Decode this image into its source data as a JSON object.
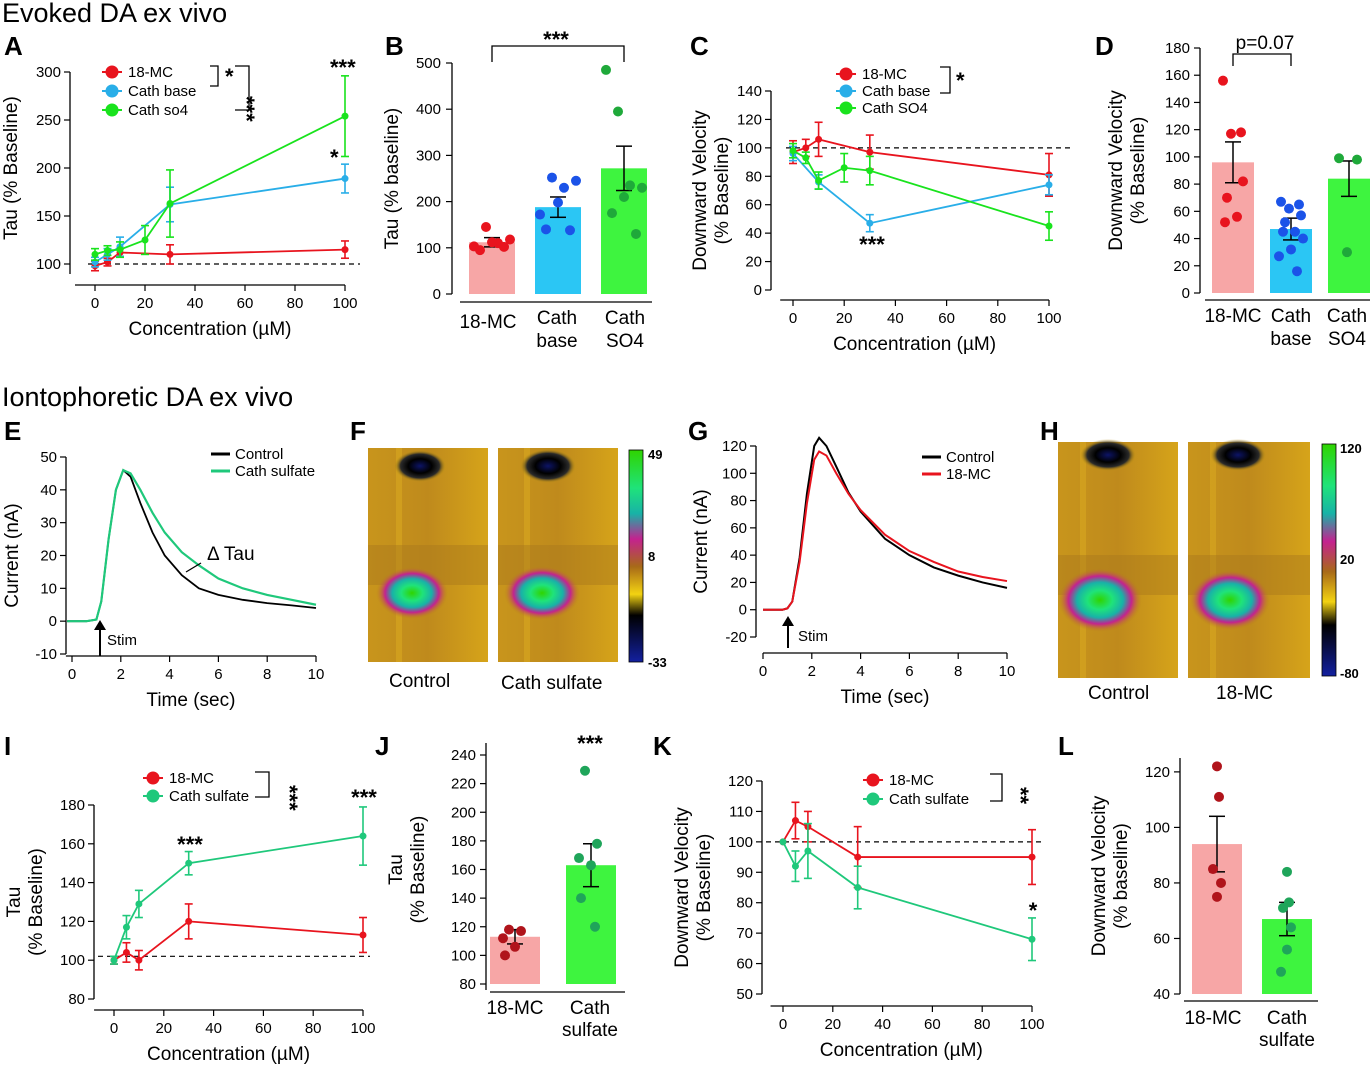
{
  "section_titles": {
    "top": "Evoked DA ex vivo",
    "bottom": "Iontophoretic DA ex vivo"
  },
  "colors": {
    "mc": "#e8141e",
    "base": "#29aee8",
    "so4": "#19e31d",
    "csulf": "#1fc87b",
    "mc_bar": "#f7a6a6",
    "base_bar": "#2bc6f4",
    "so4_bar": "#3ef43f",
    "mc_dot": "#e8141e",
    "base_dot": "#1b53e8",
    "so4_dot": "#1fa93a",
    "l_mc_dot": "#b0141b",
    "l_cs_dot": "#1fa55a",
    "black": "#000000"
  },
  "panels": {
    "A": {
      "letter": "A",
      "xlabel": "Concentration (µM)",
      "ylabel": "Tau (% Baseline)",
      "xticks": [
        "0",
        "20",
        "40",
        "60",
        "80",
        "100"
      ],
      "yticks": [
        "100",
        "150",
        "200",
        "250",
        "300"
      ],
      "legend": [
        "18-MC",
        "Cath base",
        "Cath so4"
      ],
      "stars": [
        "*",
        "***",
        "***",
        "*"
      ]
    },
    "B": {
      "letter": "B",
      "ylabel": "Tau (% baseline)",
      "yticks": [
        "0",
        "100",
        "200",
        "300",
        "400",
        "500"
      ],
      "categories": [
        "18-MC",
        "Cath base",
        "Cath SO4"
      ],
      "stars": [
        "***"
      ]
    },
    "C": {
      "letter": "C",
      "xlabel": "Concentration (µM)",
      "ylabel": "Downward Velocity",
      "ylabel2": "(% Baseline)",
      "xticks": [
        "0",
        "20",
        "40",
        "60",
        "80",
        "100"
      ],
      "yticks": [
        "0",
        "20",
        "40",
        "60",
        "80",
        "100",
        "120",
        "140"
      ],
      "legend": [
        "18-MC",
        "Cath base",
        "Cath SO4"
      ],
      "stars": [
        "*",
        "***"
      ]
    },
    "D": {
      "letter": "D",
      "ylabel": "Downward Velocity",
      "ylabel2": "(% Baseline)",
      "yticks": [
        "0",
        "20",
        "40",
        "60",
        "80",
        "100",
        "120",
        "140",
        "160",
        "180"
      ],
      "categories": [
        "18-MC",
        "Cath base",
        "Cath SO4"
      ],
      "pval": "p=0.07"
    },
    "E": {
      "letter": "E",
      "xlabel": "Time (sec)",
      "ylabel": "Current (nA)",
      "xticks": [
        "0",
        "2",
        "4",
        "6",
        "8",
        "10"
      ],
      "yticks": [
        "-10",
        "0",
        "10",
        "20",
        "30",
        "40",
        "50"
      ],
      "legend": [
        "Control",
        "Cath sulfate"
      ],
      "stim": "Stim",
      "delta": "Δ Tau"
    },
    "F": {
      "letter": "F",
      "labels": [
        "Control",
        "Cath sulfate"
      ],
      "cbar": [
        "49",
        "8",
        "-33"
      ]
    },
    "G": {
      "letter": "G",
      "xlabel": "Time (sec)",
      "ylabel": "Current (nA)",
      "xticks": [
        "0",
        "2",
        "4",
        "6",
        "8",
        "10"
      ],
      "yticks": [
        "-20",
        "0",
        "20",
        "40",
        "60",
        "80",
        "100",
        "120"
      ],
      "legend": [
        "Control",
        "18-MC"
      ],
      "stim": "Stim"
    },
    "H": {
      "letter": "H",
      "labels": [
        "Control",
        "18-MC"
      ],
      "cbar": [
        "120",
        "20",
        "-80"
      ]
    },
    "I": {
      "letter": "I",
      "xlabel": "Concentration (µM)",
      "ylabel": "Tau",
      "ylabel2": "(% Baseline)",
      "xticks": [
        "0",
        "20",
        "40",
        "60",
        "80",
        "100"
      ],
      "yticks": [
        "80",
        "100",
        "120",
        "140",
        "160",
        "180"
      ],
      "legend": [
        "18-MC",
        "Cath sulfate"
      ],
      "stars": [
        "***",
        "***",
        "***"
      ]
    },
    "J": {
      "letter": "J",
      "ylabel": "Tau",
      "ylabel2": "(% Baseline)",
      "yticks": [
        "80",
        "100",
        "120",
        "140",
        "160",
        "180",
        "200",
        "220",
        "240"
      ],
      "categories": [
        "18-MC",
        "Cath sulfate"
      ],
      "stars": [
        "***"
      ]
    },
    "K": {
      "letter": "K",
      "xlabel": "Concentration (µM)",
      "ylabel": "Downward Velocity",
      "ylabel2": "(% Baseline)",
      "xticks": [
        "0",
        "20",
        "40",
        "60",
        "80",
        "100"
      ],
      "yticks": [
        "50",
        "60",
        "70",
        "80",
        "90",
        "100",
        "110",
        "120"
      ],
      "legend": [
        "18-MC",
        "Cath sulfate"
      ],
      "stars": [
        "**",
        "*"
      ]
    },
    "L": {
      "letter": "L",
      "ylabel": "Downward Velocity",
      "ylabel2": "(% baseline)",
      "yticks": [
        "40",
        "60",
        "80",
        "100",
        "120"
      ],
      "categories": [
        "18-MC",
        "Cath sulfate"
      ]
    }
  },
  "chart_data": [
    {
      "panel": "A",
      "type": "line",
      "xlim": [
        0,
        100
      ],
      "ylim": [
        100,
        300
      ],
      "baseline": 100,
      "series": [
        {
          "name": "18-MC",
          "x": [
            0,
            5,
            10,
            30,
            100
          ],
          "y": [
            98,
            102,
            112,
            110,
            115
          ],
          "err": [
            5,
            4,
            4,
            10,
            9
          ]
        },
        {
          "name": "Cath base",
          "x": [
            0,
            5,
            10,
            30,
            100
          ],
          "y": [
            102,
            110,
            118,
            162,
            189
          ],
          "err": [
            5,
            6,
            10,
            18,
            15
          ]
        },
        {
          "name": "Cath so4",
          "x": [
            0,
            5,
            10,
            20,
            30,
            100
          ],
          "y": [
            110,
            114,
            115,
            125,
            163,
            254
          ],
          "err": [
            6,
            5,
            8,
            15,
            35,
            42
          ]
        }
      ]
    },
    {
      "panel": "B",
      "type": "bar",
      "ylim": [
        0,
        500
      ],
      "categories": [
        "18-MC",
        "Cath base",
        "Cath SO4"
      ],
      "values": [
        112,
        188,
        272
      ],
      "err": [
        10,
        22,
        48
      ],
      "points": [
        [
          103,
          145,
          110,
          118,
          95,
          102,
          112
        ],
        [
          172,
          252,
          230,
          245,
          140,
          138,
          198
        ],
        [
          485,
          395,
          235,
          230,
          175,
          130,
          210
        ]
      ]
    },
    {
      "panel": "C",
      "type": "line",
      "xlim": [
        0,
        100
      ],
      "ylim": [
        0,
        140
      ],
      "baseline": 100,
      "series": [
        {
          "name": "18-MC",
          "x": [
            0,
            5,
            10,
            30,
            100
          ],
          "y": [
            97,
            100,
            106,
            97,
            81
          ],
          "err": [
            8,
            6,
            12,
            12,
            15
          ]
        },
        {
          "name": "Cath base",
          "x": [
            0,
            10,
            30,
            100
          ],
          "y": [
            96,
            76,
            47,
            74
          ],
          "err": [
            5,
            5,
            6,
            7
          ]
        },
        {
          "name": "Cath SO4",
          "x": [
            0,
            5,
            10,
            20,
            30,
            100
          ],
          "y": [
            98,
            93,
            77,
            86,
            84,
            45
          ],
          "err": [
            5,
            4,
            6,
            10,
            10,
            10
          ]
        }
      ]
    },
    {
      "panel": "D",
      "type": "bar",
      "ylim": [
        0,
        180
      ],
      "categories": [
        "18-MC",
        "Cath base",
        "Cath SO4"
      ],
      "values": [
        96,
        47,
        84
      ],
      "err": [
        15,
        8,
        13
      ],
      "points": [
        [
          156,
          118,
          117,
          82,
          70,
          56,
          52
        ],
        [
          67,
          65,
          62,
          57,
          52,
          45,
          45,
          40,
          32,
          27,
          16
        ],
        [
          99,
          98,
          30
        ]
      ]
    },
    {
      "panel": "E",
      "type": "line",
      "xlim": [
        -0.2,
        10
      ],
      "ylim": [
        -10,
        50
      ],
      "series": [
        {
          "name": "Control",
          "x": [
            -0.2,
            0.6,
            1.0,
            1.2,
            1.5,
            1.8,
            2.1,
            2.4,
            2.8,
            3.3,
            3.8,
            4.5,
            5.2,
            6.0,
            7.0,
            8.0,
            9.0,
            10.0
          ],
          "y": [
            0,
            0,
            0.5,
            6,
            25,
            40,
            46,
            44,
            36,
            27,
            20,
            14,
            10,
            8,
            6.5,
            5.5,
            4.8,
            4
          ]
        },
        {
          "name": "Cath sulfate",
          "x": [
            -0.2,
            0.6,
            1.0,
            1.2,
            1.5,
            1.8,
            2.1,
            2.4,
            2.8,
            3.3,
            3.8,
            4.5,
            5.2,
            6.0,
            7.0,
            8.0,
            9.0,
            10.0
          ],
          "y": [
            0,
            0,
            0.5,
            6,
            25,
            40,
            46,
            45,
            40,
            33,
            27,
            21,
            17,
            13,
            10,
            8,
            6.5,
            5
          ]
        }
      ]
    },
    {
      "panel": "G",
      "type": "line",
      "xlim": [
        0,
        10
      ],
      "ylim": [
        -20,
        125
      ],
      "series": [
        {
          "name": "Control",
          "x": [
            0,
            0.8,
            1.0,
            1.2,
            1.5,
            1.8,
            2.1,
            2.3,
            2.6,
            3.0,
            3.5,
            4.0,
            5.0,
            6.0,
            7.0,
            8.0,
            9.0,
            10.0
          ],
          "y": [
            0,
            0,
            1,
            6,
            38,
            85,
            120,
            126,
            120,
            105,
            86,
            72,
            52,
            40,
            31,
            25,
            20,
            16
          ]
        },
        {
          "name": "18-MC",
          "x": [
            0,
            0.8,
            1.0,
            1.2,
            1.5,
            1.8,
            2.1,
            2.3,
            2.6,
            3.0,
            3.5,
            4.0,
            5.0,
            6.0,
            7.0,
            8.0,
            9.0,
            10.0
          ],
          "y": [
            0,
            0,
            1,
            6,
            35,
            78,
            110,
            116,
            113,
            100,
            85,
            73,
            55,
            43,
            35,
            28,
            24,
            21
          ]
        }
      ]
    },
    {
      "panel": "I",
      "type": "line",
      "xlim": [
        0,
        100
      ],
      "ylim": [
        80,
        180
      ],
      "baseline": 102,
      "series": [
        {
          "name": "18-MC",
          "x": [
            0,
            5,
            10,
            30,
            100
          ],
          "y": [
            100,
            104,
            100,
            120,
            113
          ],
          "err": [
            2,
            5,
            5,
            9,
            9
          ]
        },
        {
          "name": "Cath sulfate",
          "x": [
            0,
            5,
            10,
            30,
            100
          ],
          "y": [
            100,
            117,
            129,
            150,
            164
          ],
          "err": [
            2,
            6,
            7,
            6,
            15
          ]
        }
      ]
    },
    {
      "panel": "J",
      "type": "bar",
      "ylim": [
        80,
        240
      ],
      "categories": [
        "18-MC",
        "Cath sulfate"
      ],
      "values": [
        113,
        163
      ],
      "err": [
        5,
        15
      ],
      "points": [
        [
          118,
          117,
          112,
          106,
          100
        ],
        [
          229,
          178,
          168,
          163,
          140,
          120
        ]
      ]
    },
    {
      "panel": "K",
      "type": "line",
      "xlim": [
        0,
        100
      ],
      "ylim": [
        50,
        120
      ],
      "baseline": 100,
      "series": [
        {
          "name": "18-MC",
          "x": [
            0,
            5,
            10,
            30,
            100
          ],
          "y": [
            100,
            107,
            105,
            95,
            95
          ],
          "err": [
            0,
            6,
            5,
            10,
            9
          ]
        },
        {
          "name": "Cath sulfate",
          "x": [
            0,
            5,
            10,
            30,
            100
          ],
          "y": [
            100,
            92,
            97,
            85,
            68
          ],
          "err": [
            0,
            5,
            9,
            7,
            7
          ]
        }
      ]
    },
    {
      "panel": "L",
      "type": "bar",
      "ylim": [
        40,
        125
      ],
      "categories": [
        "18-MC",
        "Cath sulfate"
      ],
      "values": [
        94,
        67
      ],
      "err": [
        10,
        6
      ],
      "points": [
        [
          122,
          111,
          85,
          80,
          75
        ],
        [
          84,
          73,
          71,
          64,
          56,
          48
        ]
      ]
    }
  ]
}
